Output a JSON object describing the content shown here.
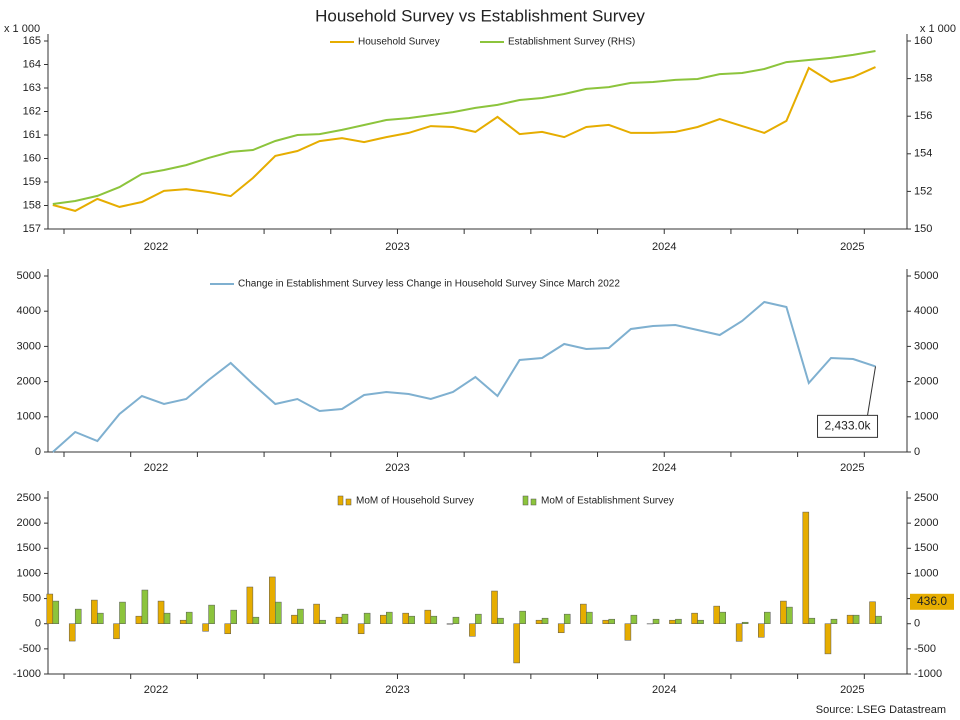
{
  "title": "Household Survey vs Establishment Survey",
  "source": "Source: LSEG Datastream",
  "chart_data": [
    {
      "type": "line",
      "y_label": "x 1 000",
      "y2_label": "x 1 000",
      "x": [
        2022.208,
        2022.292,
        2022.375,
        2022.458,
        2022.542,
        2022.625,
        2022.708,
        2022.792,
        2022.875,
        2022.958,
        2023.042,
        2023.125,
        2023.208,
        2023.292,
        2023.375,
        2023.458,
        2023.542,
        2023.625,
        2023.708,
        2023.792,
        2023.875,
        2023.958,
        2024.042,
        2024.125,
        2024.208,
        2024.292,
        2024.375,
        2024.458,
        2024.542,
        2024.625,
        2024.708,
        2024.792,
        2024.875,
        2024.958,
        2025.042,
        2025.125,
        2025.208,
        2025.292
      ],
      "xlim": [
        2022.19,
        2025.41
      ],
      "xticks": [
        2022.25,
        2022.5,
        2022.75,
        2023,
        2023.25,
        2023.5,
        2023.75,
        2024,
        2024.25,
        2024.5,
        2024.75,
        2025,
        2025.25
      ],
      "xlabels": [
        2022,
        2023,
        2024,
        2025
      ],
      "ylim": [
        157,
        165
      ],
      "yticks": [
        157,
        158,
        159,
        160,
        161,
        162,
        163,
        164,
        165
      ],
      "y2lim": [
        150,
        160
      ],
      "y2ticks": [
        150,
        152,
        154,
        156,
        158,
        160
      ],
      "series": [
        {
          "name": "Household Survey",
          "color": "#e6ad00",
          "values": [
            158.02,
            157.77,
            158.28,
            157.94,
            158.15,
            158.62,
            158.7,
            158.57,
            158.4,
            159.17,
            160.11,
            160.32,
            160.74,
            160.87,
            160.7,
            160.91,
            161.09,
            161.38,
            161.34,
            161.13,
            161.77,
            161.04,
            161.13,
            160.91,
            161.34,
            161.43,
            161.09,
            161.09,
            161.13,
            161.34,
            161.68,
            161.38,
            161.09,
            161.6,
            163.85,
            163.26,
            163.47,
            163.89
          ]
        },
        {
          "name": "Establishment Survey (RHS)",
          "color": "#8cc43c",
          "axis": "y2",
          "values": [
            151.33,
            151.49,
            151.76,
            152.23,
            152.93,
            153.14,
            153.4,
            153.78,
            154.1,
            154.2,
            154.68,
            155.0,
            155.05,
            155.27,
            155.53,
            155.8,
            155.9,
            156.06,
            156.22,
            156.44,
            156.6,
            156.86,
            156.97,
            157.18,
            157.45,
            157.55,
            157.77,
            157.82,
            157.93,
            157.98,
            158.24,
            158.3,
            158.51,
            158.88,
            158.99,
            159.1,
            159.26,
            159.47
          ]
        }
      ]
    },
    {
      "type": "line",
      "x": [
        2022.208,
        2022.292,
        2022.375,
        2022.458,
        2022.542,
        2022.625,
        2022.708,
        2022.792,
        2022.875,
        2022.958,
        2023.042,
        2023.125,
        2023.208,
        2023.292,
        2023.375,
        2023.458,
        2023.542,
        2023.625,
        2023.708,
        2023.792,
        2023.875,
        2023.958,
        2024.042,
        2024.125,
        2024.208,
        2024.292,
        2024.375,
        2024.458,
        2024.542,
        2024.625,
        2024.708,
        2024.792,
        2024.875,
        2024.958,
        2025.042,
        2025.125,
        2025.208,
        2025.292
      ],
      "xlim": [
        2022.19,
        2025.41
      ],
      "xticks": [
        2022.25,
        2022.5,
        2022.75,
        2023,
        2023.25,
        2023.5,
        2023.75,
        2024,
        2024.25,
        2024.5,
        2024.75,
        2025,
        2025.25
      ],
      "xlabels": [
        2022,
        2023,
        2024,
        2025
      ],
      "ylim": [
        0,
        5000
      ],
      "yticks": [
        0,
        1000,
        2000,
        3000,
        4000,
        5000
      ],
      "mirror_y": true,
      "series": [
        {
          "name": "Change in Establishment Survey less Change in Household Survey Since March 2022",
          "color": "#7fb0d0",
          "values": [
            0,
            568,
            313,
            1080,
            1591,
            1364,
            1506,
            2045,
            2528,
            1932,
            1364,
            1506,
            1165,
            1222,
            1619,
            1705,
            1648,
            1506,
            1705,
            2131,
            1591,
            2614,
            2670,
            3068,
            2926,
            2955,
            3494,
            3580,
            3608,
            3466,
            3324,
            3722,
            4261,
            4119,
            1960,
            2670,
            2642,
            2433
          ],
          "value_labels": [
            null,
            null,
            null,
            null,
            null,
            null,
            null,
            null,
            null,
            null,
            null,
            null,
            null,
            null,
            null,
            null,
            null,
            null,
            null,
            null,
            null,
            null,
            null,
            null,
            null,
            null,
            null,
            null,
            null,
            null,
            null,
            null,
            null,
            null,
            null,
            null,
            null,
            "2,433.0k"
          ]
        }
      ]
    },
    {
      "type": "bar",
      "x": [
        2022.208,
        2022.292,
        2022.375,
        2022.458,
        2022.542,
        2022.625,
        2022.708,
        2022.792,
        2022.875,
        2022.958,
        2023.042,
        2023.125,
        2023.208,
        2023.292,
        2023.375,
        2023.458,
        2023.542,
        2023.625,
        2023.708,
        2023.792,
        2023.875,
        2023.958,
        2024.042,
        2024.125,
        2024.208,
        2024.292,
        2024.375,
        2024.458,
        2024.542,
        2024.625,
        2024.708,
        2024.792,
        2024.875,
        2024.958,
        2025.042,
        2025.125,
        2025.208,
        2025.292
      ],
      "xlim": [
        2022.19,
        2025.41
      ],
      "xticks": [
        2022.25,
        2022.5,
        2022.75,
        2023,
        2023.25,
        2023.5,
        2023.75,
        2024,
        2024.25,
        2024.5,
        2024.75,
        2025,
        2025.25
      ],
      "xlabels": [
        2022,
        2023,
        2024,
        2025
      ],
      "ylim": [
        -1000,
        2500
      ],
      "yticks": [
        -1000,
        -500,
        0,
        500,
        1000,
        1500,
        2000,
        2500
      ],
      "mirror_y": true,
      "series": [
        {
          "name": "MoM of Household Survey",
          "color": "#e6ad00",
          "values": [
            590,
            -345,
            470,
            -300,
            150,
            450,
            70,
            -150,
            -200,
            730,
            930,
            170,
            390,
            130,
            -200,
            170,
            210,
            270,
            -10,
            -250,
            650,
            -780,
            70,
            -180,
            390,
            70,
            -330,
            -5,
            70,
            210,
            350,
            -350,
            -270,
            450,
            2220,
            -600,
            170,
            436
          ],
          "value_labels": [
            null,
            null,
            null,
            null,
            null,
            null,
            null,
            null,
            null,
            null,
            null,
            null,
            null,
            null,
            null,
            null,
            null,
            null,
            null,
            null,
            null,
            null,
            null,
            null,
            null,
            null,
            null,
            null,
            null,
            null,
            null,
            null,
            null,
            null,
            null,
            null,
            null,
            "436.0"
          ]
        },
        {
          "name": "MoM of Establishment Survey",
          "color": "#8cc43c",
          "values": [
            450,
            290,
            210,
            430,
            670,
            210,
            230,
            370,
            270,
            130,
            430,
            290,
            70,
            190,
            210,
            230,
            150,
            150,
            130,
            190,
            110,
            250,
            110,
            190,
            230,
            90,
            170,
            90,
            90,
            70,
            230,
            30,
            230,
            330,
            110,
            90,
            170,
            150
          ]
        }
      ]
    }
  ]
}
